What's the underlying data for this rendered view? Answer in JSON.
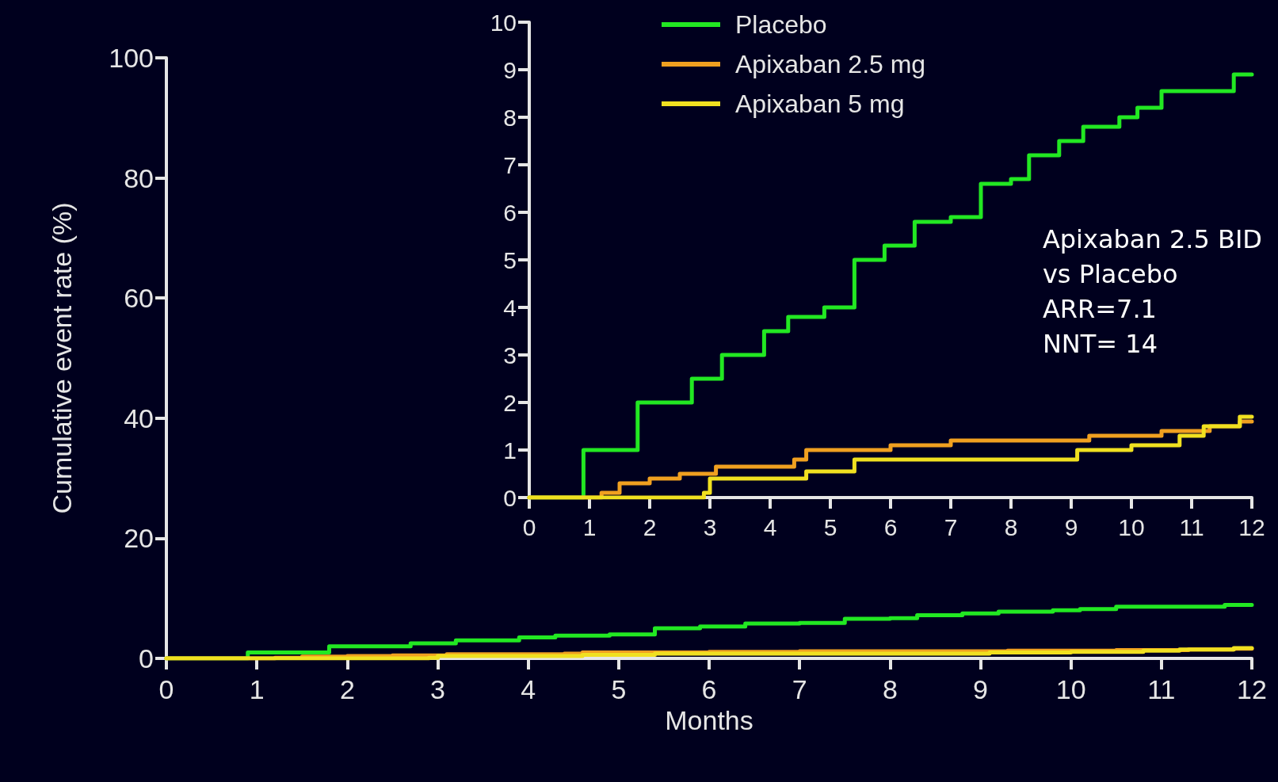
{
  "chart_data": [
    {
      "type": "step",
      "xlabel": "Months",
      "ylabel": "Cumulative event rate (%)",
      "xlim": [
        0,
        12
      ],
      "xticks": [
        0,
        1,
        2,
        3,
        4,
        5,
        6,
        7,
        8,
        9,
        10,
        11,
        12
      ],
      "ylim": [
        0,
        100
      ],
      "yticks": [
        0,
        20,
        40,
        60,
        80,
        100
      ],
      "grid": false,
      "legend": false,
      "marker": "none",
      "line_style": "solid",
      "series": [
        {
          "color": "#22e822",
          "x": [
            0,
            0.3,
            0.9,
            1.8,
            2.7,
            3.2,
            3.9,
            4.3,
            4.9,
            5.4,
            5.9,
            6.4,
            7.0,
            7.5,
            8.0,
            8.3,
            8.8,
            9.2,
            9.8,
            10.1,
            10.5,
            11.7,
            12
          ],
          "values": [
            0,
            0,
            1.0,
            2.0,
            2.5,
            3.0,
            3.5,
            3.8,
            4.0,
            5.0,
            5.3,
            5.8,
            5.9,
            6.6,
            6.7,
            7.2,
            7.5,
            7.8,
            8.0,
            8.2,
            8.6,
            8.9,
            8.9
          ]
        },
        {
          "color": "#f0a020",
          "x": [
            0,
            0.3,
            1.2,
            1.5,
            2.0,
            2.5,
            3.1,
            4.4,
            4.6,
            6.0,
            7.0,
            9.3,
            10.5,
            11.3,
            11.8,
            12
          ],
          "values": [
            0,
            0,
            0.1,
            0.3,
            0.4,
            0.5,
            0.7,
            0.8,
            1.0,
            1.1,
            1.2,
            1.3,
            1.4,
            1.5,
            1.6,
            1.6
          ]
        },
        {
          "color": "#f0e020",
          "x": [
            0,
            2.8,
            2.9,
            3.0,
            4.6,
            5.4,
            9.1,
            10.0,
            10.8,
            11.2,
            11.8,
            12
          ],
          "values": [
            0,
            0,
            0.1,
            0.4,
            0.6,
            0.8,
            1.0,
            1.1,
            1.3,
            1.5,
            1.7,
            1.7
          ]
        }
      ]
    },
    {
      "type": "step",
      "xlim": [
        0,
        12
      ],
      "xticks": [
        0,
        1,
        2,
        3,
        4,
        5,
        6,
        7,
        8,
        9,
        10,
        11,
        12
      ],
      "ylim": [
        0,
        10
      ],
      "yticks": [
        0,
        1,
        2,
        3,
        4,
        5,
        6,
        7,
        8,
        9,
        10
      ],
      "grid": false,
      "legend": "top",
      "marker": "none",
      "line_style": "solid",
      "annotations": [
        "Apixaban 2.5 BID\nvs Placebo\nARR=7.1\nNNT= 14"
      ],
      "series": [
        {
          "name": "Placebo",
          "color": "#22e822",
          "x": [
            0,
            0.3,
            0.9,
            1.8,
            2.7,
            3.2,
            3.9,
            4.3,
            4.9,
            5.4,
            5.9,
            6.4,
            7.0,
            7.5,
            8.0,
            8.3,
            8.8,
            9.2,
            9.8,
            10.1,
            10.5,
            11.7,
            12
          ],
          "values": [
            0,
            0,
            1.0,
            2.0,
            2.5,
            3.0,
            3.5,
            3.8,
            4.0,
            5.0,
            5.3,
            5.8,
            5.9,
            6.6,
            6.7,
            7.2,
            7.5,
            7.8,
            8.0,
            8.2,
            8.55,
            8.9,
            8.9
          ]
        },
        {
          "name": "Apixaban 2.5 mg",
          "color": "#f0a020",
          "x": [
            0,
            0.3,
            1.2,
            1.5,
            2.0,
            2.5,
            3.1,
            4.4,
            4.6,
            6.0,
            7.0,
            9.3,
            10.5,
            11.3,
            11.8,
            12
          ],
          "values": [
            0,
            0,
            0.1,
            0.3,
            0.4,
            0.5,
            0.65,
            0.8,
            1.0,
            1.1,
            1.2,
            1.3,
            1.4,
            1.5,
            1.6,
            1.6
          ]
        },
        {
          "name": "Apixaban 5 mg",
          "color": "#f0e020",
          "x": [
            0,
            2.8,
            2.9,
            3.0,
            4.6,
            5.4,
            9.1,
            10.0,
            10.8,
            11.2,
            11.8,
            12
          ],
          "values": [
            0,
            0,
            0.1,
            0.4,
            0.55,
            0.8,
            1.0,
            1.1,
            1.3,
            1.5,
            1.7,
            1.7
          ]
        }
      ]
    }
  ]
}
